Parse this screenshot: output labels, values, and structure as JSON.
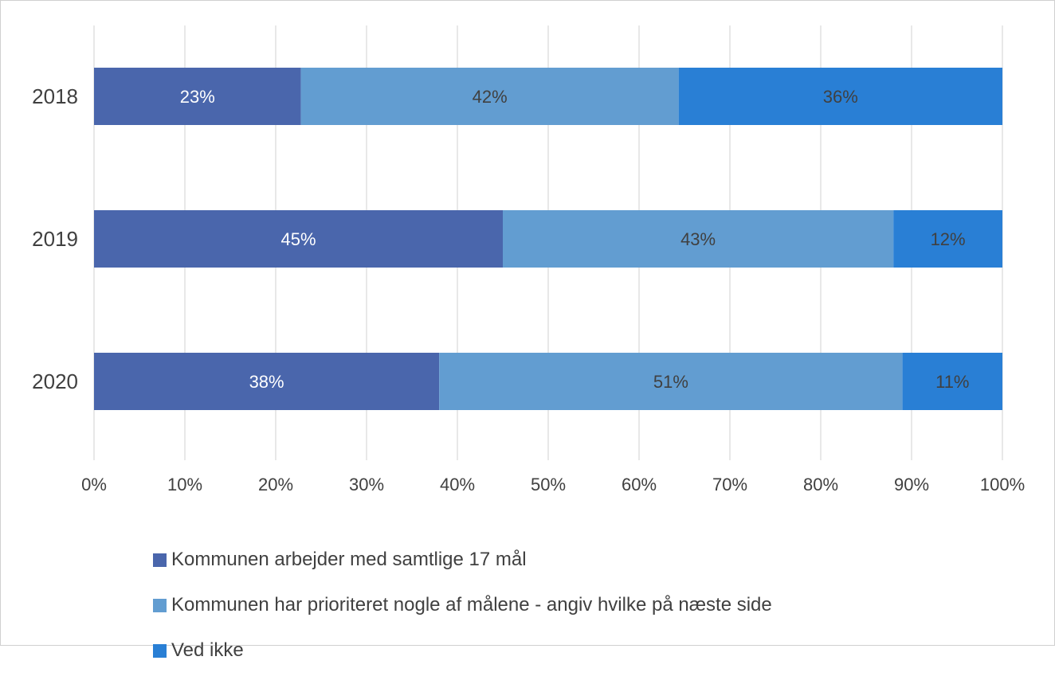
{
  "chart_data": {
    "type": "bar",
    "orientation": "horizontal",
    "stacked": true,
    "categories": [
      "2018",
      "2019",
      "2020"
    ],
    "series": [
      {
        "name": "Kommunen arbejder med samtlige 17 mål",
        "values": [
          23,
          45,
          38
        ],
        "labels": [
          "23%",
          "45%",
          "38%"
        ],
        "color": "#4a66ac"
      },
      {
        "name": "Kommunen har prioriteret nogle af målene - angiv hvilke på næste side",
        "values": [
          42,
          43,
          51
        ],
        "labels": [
          "42%",
          "43%",
          "51%"
        ],
        "color": "#629dd1"
      },
      {
        "name": "Ved ikke",
        "values": [
          36,
          12,
          11
        ],
        "labels": [
          "36%",
          "12%",
          "11%"
        ],
        "color": "#297fd5"
      }
    ],
    "xlim": [
      0,
      100
    ],
    "xticks": [
      "0%",
      "10%",
      "20%",
      "30%",
      "40%",
      "50%",
      "60%",
      "70%",
      "80%",
      "90%",
      "100%"
    ],
    "grid": true,
    "legend_position": "bottom",
    "title": "",
    "xlabel": "",
    "ylabel": ""
  }
}
